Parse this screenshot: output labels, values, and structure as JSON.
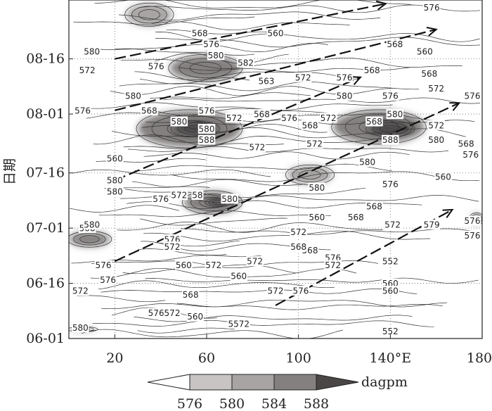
{
  "chart_data": {
    "type": "heatmap",
    "title": "",
    "xlabel": "",
    "ylabel": "日期",
    "x_axis": {
      "range": [
        0,
        180
      ],
      "ticks": [
        {
          "value": 20,
          "label": "20"
        },
        {
          "value": 60,
          "label": "60"
        },
        {
          "value": 100,
          "label": "100"
        },
        {
          "value": 140,
          "label": "140°E"
        },
        {
          "value": 180,
          "label": "180"
        }
      ]
    },
    "y_axis": {
      "range_days": [
        0,
        92
      ],
      "ticks": [
        {
          "day": 0,
          "label": "06-01"
        },
        {
          "day": 15,
          "label": "06-16"
        },
        {
          "day": 30,
          "label": "07-01"
        },
        {
          "day": 45,
          "label": "07-16"
        },
        {
          "day": 61,
          "label": "08-01"
        },
        {
          "day": 76,
          "label": "08-16"
        }
      ]
    },
    "grid": "dotted",
    "legend": {
      "unit": "dagpm",
      "levels": [
        "576",
        "580",
        "584",
        "588"
      ],
      "colors": [
        "#ffffff",
        "#c8c4c4",
        "#a8a4a4",
        "#848080",
        "#4a4646"
      ]
    },
    "shaded_regions": [
      {
        "x": [
          0,
          18
        ],
        "y": [
          25,
          29
        ],
        "level": 584
      },
      {
        "x": [
          25,
          45
        ],
        "y": [
          85,
          91
        ],
        "level": 580
      },
      {
        "x": [
          44,
          75
        ],
        "y": [
          70,
          77
        ],
        "level": 584
      },
      {
        "x": [
          30,
          75
        ],
        "y": [
          52,
          62
        ],
        "level": 584
      },
      {
        "x": [
          45,
          65
        ],
        "y": [
          55,
          59
        ],
        "level": 588
      },
      {
        "x": [
          50,
          75
        ],
        "y": [
          34,
          40
        ],
        "level": 584
      },
      {
        "x": [
          60,
          70
        ],
        "y": [
          36,
          38
        ],
        "level": 588
      },
      {
        "x": [
          115,
          155
        ],
        "y": [
          53,
          62
        ],
        "level": 584
      },
      {
        "x": [
          130,
          150
        ],
        "y": [
          55,
          59
        ],
        "level": 588
      },
      {
        "x": [
          95,
          115
        ],
        "y": [
          42,
          47
        ],
        "level": 580
      },
      {
        "x": [
          175,
          180
        ],
        "y": [
          31,
          34
        ],
        "level": 580
      },
      {
        "x": [
          0,
          12
        ],
        "y": [
          2,
          3
        ],
        "level": 580
      }
    ],
    "contour_labels": [
      {
        "x": 158,
        "y": 90,
        "text": "576"
      },
      {
        "x": 90,
        "y": 83,
        "text": "560"
      },
      {
        "x": 57,
        "y": 83,
        "text": "568"
      },
      {
        "x": 10,
        "y": 78,
        "text": "580"
      },
      {
        "x": 38,
        "y": 74,
        "text": "576"
      },
      {
        "x": 64,
        "y": 77,
        "text": "580"
      },
      {
        "x": 62,
        "y": 80,
        "text": "576"
      },
      {
        "x": 77,
        "y": 75,
        "text": "582"
      },
      {
        "x": 142,
        "y": 80,
        "text": "568"
      },
      {
        "x": 155,
        "y": 78,
        "text": "560"
      },
      {
        "x": 8,
        "y": 73,
        "text": "572"
      },
      {
        "x": 102,
        "y": 71,
        "text": "572"
      },
      {
        "x": 120,
        "y": 71,
        "text": "576"
      },
      {
        "x": 86,
        "y": 70,
        "text": "563"
      },
      {
        "x": 132,
        "y": 73,
        "text": "568"
      },
      {
        "x": 157,
        "y": 72,
        "text": "568"
      },
      {
        "x": 160,
        "y": 68,
        "text": "572"
      },
      {
        "x": 28,
        "y": 66,
        "text": "580"
      },
      {
        "x": 140,
        "y": 66,
        "text": "576"
      },
      {
        "x": 120,
        "y": 66,
        "text": "580"
      },
      {
        "x": 180,
        "y": 66,
        "text": "576"
      },
      {
        "x": 35,
        "y": 62,
        "text": "568"
      },
      {
        "x": 60,
        "y": 62,
        "text": "576"
      },
      {
        "x": 72,
        "y": 60,
        "text": "572"
      },
      {
        "x": 84,
        "y": 61,
        "text": "568"
      },
      {
        "x": 96,
        "y": 60,
        "text": "576"
      },
      {
        "x": 113,
        "y": 60,
        "text": "572"
      },
      {
        "x": 142,
        "y": 61,
        "text": "580"
      },
      {
        "x": 6,
        "y": 62,
        "text": "576"
      },
      {
        "x": 48,
        "y": 59,
        "text": "580"
      },
      {
        "x": 60,
        "y": 57,
        "text": "580"
      },
      {
        "x": 105,
        "y": 58,
        "text": "568"
      },
      {
        "x": 133,
        "y": 59,
        "text": "568"
      },
      {
        "x": 160,
        "y": 58,
        "text": "572"
      },
      {
        "x": 60,
        "y": 54,
        "text": "588"
      },
      {
        "x": 140,
        "y": 54,
        "text": "588"
      },
      {
        "x": 160,
        "y": 54,
        "text": "580"
      },
      {
        "x": 173,
        "y": 53,
        "text": "568"
      },
      {
        "x": 82,
        "y": 52,
        "text": "572"
      },
      {
        "x": 107,
        "y": 53,
        "text": "572"
      },
      {
        "x": 175,
        "y": 50,
        "text": "576"
      },
      {
        "x": 20,
        "y": 49,
        "text": "560"
      },
      {
        "x": 130,
        "y": 48,
        "text": "580"
      },
      {
        "x": 108,
        "y": 41,
        "text": "580"
      },
      {
        "x": 140,
        "y": 42,
        "text": "576"
      },
      {
        "x": 163,
        "y": 44,
        "text": "560"
      },
      {
        "x": 20,
        "y": 40,
        "text": "580"
      },
      {
        "x": 20,
        "y": 43,
        "text": "580"
      },
      {
        "x": 40,
        "y": 38,
        "text": "576"
      },
      {
        "x": 48,
        "y": 39,
        "text": "572"
      },
      {
        "x": 56,
        "y": 39,
        "text": "58"
      },
      {
        "x": 70,
        "y": 38,
        "text": "580"
      },
      {
        "x": 133,
        "y": 36,
        "text": "568"
      },
      {
        "x": 108,
        "y": 33,
        "text": "560"
      },
      {
        "x": 125,
        "y": 33,
        "text": "568"
      },
      {
        "x": 8,
        "y": 30,
        "text": "568"
      },
      {
        "x": 10,
        "y": 31,
        "text": "580"
      },
      {
        "x": 100,
        "y": 29,
        "text": "572"
      },
      {
        "x": 141,
        "y": 31,
        "text": "572"
      },
      {
        "x": 158,
        "y": 31,
        "text": "579"
      },
      {
        "x": 176,
        "y": 32,
        "text": "576"
      },
      {
        "x": 180,
        "y": 28,
        "text": "576"
      },
      {
        "x": 45,
        "y": 27,
        "text": "576"
      },
      {
        "x": 45,
        "y": 25,
        "text": "572"
      },
      {
        "x": 105,
        "y": 24,
        "text": "568"
      },
      {
        "x": 100,
        "y": 25,
        "text": "568"
      },
      {
        "x": 115,
        "y": 22,
        "text": "576"
      },
      {
        "x": 115,
        "y": 20,
        "text": "572"
      },
      {
        "x": 140,
        "y": 21,
        "text": "552"
      },
      {
        "x": 15,
        "y": 20,
        "text": "576"
      },
      {
        "x": 50,
        "y": 20,
        "text": "560"
      },
      {
        "x": 63,
        "y": 20,
        "text": "572"
      },
      {
        "x": 81,
        "y": 21,
        "text": "572"
      },
      {
        "x": 74,
        "y": 17,
        "text": "560"
      },
      {
        "x": 17,
        "y": 16,
        "text": "576"
      },
      {
        "x": 140,
        "y": 15,
        "text": "560"
      },
      {
        "x": 140,
        "y": 13,
        "text": "560"
      },
      {
        "x": 5,
        "y": 13,
        "text": "572"
      },
      {
        "x": 53,
        "y": 12,
        "text": "568"
      },
      {
        "x": 90,
        "y": 13,
        "text": "572"
      },
      {
        "x": 101,
        "y": 13,
        "text": "576"
      },
      {
        "x": 38,
        "y": 7,
        "text": "576"
      },
      {
        "x": 45,
        "y": 7,
        "text": "572"
      },
      {
        "x": 55,
        "y": 6,
        "text": "560"
      },
      {
        "x": 74,
        "y": 4,
        "text": "5572"
      },
      {
        "x": 5,
        "y": 3,
        "text": "580"
      },
      {
        "x": 140,
        "y": 2,
        "text": "552"
      }
    ],
    "propagation_arrows": [
      {
        "from": {
          "x": 20,
          "y": 76
        },
        "to": {
          "x": 138,
          "y": 91
        }
      },
      {
        "from": {
          "x": 20,
          "y": 62
        },
        "to": {
          "x": 160,
          "y": 84
        }
      },
      {
        "from": {
          "x": 20,
          "y": 43
        },
        "to": {
          "x": 127,
          "y": 71
        }
      },
      {
        "from": {
          "x": 20,
          "y": 21
        },
        "to": {
          "x": 170,
          "y": 64
        }
      },
      {
        "from": {
          "x": 90,
          "y": 9
        },
        "to": {
          "x": 167,
          "y": 35
        }
      }
    ]
  }
}
